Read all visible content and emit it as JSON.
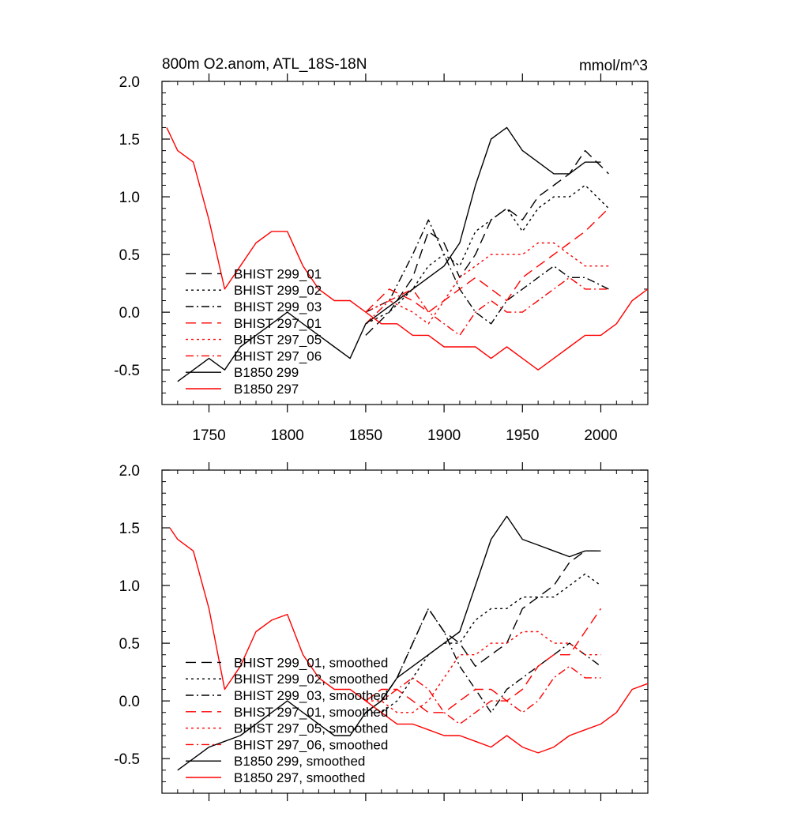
{
  "chart_data": [
    {
      "type": "line",
      "title": "800m O2.anom, ATL_18S-18N",
      "units": "mmol/m^3",
      "xlabel": "",
      "ylabel": "",
      "xlim": [
        1720,
        2030
      ],
      "ylim": [
        -0.8,
        2.0
      ],
      "x_ticks": [
        1750,
        1800,
        1850,
        1900,
        1950,
        2000
      ],
      "y_ticks": [
        -0.5,
        0.0,
        0.5,
        1.0,
        1.5,
        2.0
      ],
      "y_tick_labels": [
        "-0.5",
        "0.0",
        "0.5",
        "1.0",
        "1.5",
        "2.0"
      ],
      "legend_position": "lower-left",
      "series": [
        {
          "name": "BHIST 299_01",
          "color": "#000000",
          "dash": "long-dash",
          "x": [
            1850,
            1865,
            1880,
            1890,
            1900,
            1910,
            1920,
            1930,
            1940,
            1950,
            1960,
            1970,
            1980,
            1990,
            2005
          ],
          "y": [
            -0.2,
            0.0,
            0.3,
            0.7,
            0.6,
            0.3,
            0.5,
            0.8,
            0.9,
            0.8,
            1.0,
            1.1,
            1.2,
            1.4,
            1.2
          ]
        },
        {
          "name": "BHIST 299_02",
          "color": "#000000",
          "dash": "short-dash",
          "x": [
            1850,
            1865,
            1880,
            1890,
            1900,
            1910,
            1920,
            1930,
            1940,
            1950,
            1960,
            1970,
            1980,
            1990,
            2005
          ],
          "y": [
            -0.1,
            0.0,
            0.2,
            0.4,
            0.5,
            0.4,
            0.7,
            0.8,
            0.9,
            0.7,
            0.9,
            1.0,
            1.0,
            1.1,
            0.9
          ]
        },
        {
          "name": "BHIST 299_03",
          "color": "#000000",
          "dash": "dash-dot",
          "x": [
            1850,
            1865,
            1880,
            1890,
            1900,
            1910,
            1920,
            1930,
            1940,
            1950,
            1960,
            1970,
            1980,
            1990,
            2005
          ],
          "y": [
            0.0,
            0.1,
            0.5,
            0.8,
            0.5,
            0.2,
            0.0,
            -0.1,
            0.1,
            0.2,
            0.3,
            0.4,
            0.3,
            0.3,
            0.2
          ]
        },
        {
          "name": "BHIST 297_01",
          "color": "#ff0000",
          "dash": "long-dash",
          "x": [
            1850,
            1865,
            1880,
            1890,
            1900,
            1910,
            1920,
            1930,
            1940,
            1950,
            1960,
            1970,
            1980,
            1990,
            2005
          ],
          "y": [
            0.0,
            0.2,
            0.1,
            0.0,
            0.1,
            0.2,
            0.3,
            0.2,
            0.1,
            0.3,
            0.4,
            0.5,
            0.6,
            0.7,
            0.9
          ]
        },
        {
          "name": "BHIST 297_05",
          "color": "#ff0000",
          "dash": "short-dash",
          "x": [
            1850,
            1865,
            1880,
            1890,
            1900,
            1910,
            1920,
            1930,
            1940,
            1950,
            1960,
            1970,
            1980,
            1990,
            2005
          ],
          "y": [
            0.0,
            0.1,
            0.0,
            -0.1,
            0.1,
            0.3,
            0.4,
            0.5,
            0.5,
            0.5,
            0.6,
            0.6,
            0.5,
            0.4,
            0.4
          ]
        },
        {
          "name": "BHIST 297_06",
          "color": "#ff0000",
          "dash": "dash-dot",
          "x": [
            1850,
            1865,
            1880,
            1890,
            1900,
            1910,
            1920,
            1930,
            1940,
            1950,
            1960,
            1970,
            1980,
            1990,
            2005
          ],
          "y": [
            -0.1,
            0.1,
            0.2,
            0.0,
            -0.1,
            -0.2,
            0.0,
            0.1,
            0.0,
            0.0,
            0.1,
            0.2,
            0.3,
            0.2,
            0.2
          ]
        },
        {
          "name": "B1850 299",
          "color": "#000000",
          "dash": "solid",
          "x": [
            1730,
            1740,
            1750,
            1760,
            1770,
            1780,
            1790,
            1800,
            1810,
            1820,
            1830,
            1840,
            1850,
            1860,
            1870,
            1880,
            1890,
            1900,
            1910,
            1920,
            1930,
            1940,
            1950,
            1960,
            1970,
            1980,
            1990,
            2000
          ],
          "y": [
            -0.6,
            -0.5,
            -0.4,
            -0.5,
            -0.3,
            -0.2,
            -0.1,
            0.0,
            -0.1,
            -0.2,
            -0.3,
            -0.4,
            -0.1,
            0.0,
            0.1,
            0.2,
            0.3,
            0.4,
            0.6,
            1.1,
            1.5,
            1.6,
            1.4,
            1.3,
            1.2,
            1.2,
            1.3,
            1.3
          ]
        },
        {
          "name": "B1850 297",
          "color": "#ff0000",
          "dash": "solid",
          "x": [
            1723,
            1730,
            1740,
            1750,
            1760,
            1770,
            1780,
            1790,
            1800,
            1810,
            1820,
            1830,
            1840,
            1850,
            1860,
            1870,
            1880,
            1890,
            1900,
            1910,
            1920,
            1930,
            1940,
            1950,
            1960,
            1970,
            1980,
            1990,
            2000,
            2010,
            2020,
            2030
          ],
          "y": [
            1.6,
            1.4,
            1.3,
            0.8,
            0.2,
            0.4,
            0.6,
            0.7,
            0.7,
            0.4,
            0.2,
            0.1,
            0.1,
            0.0,
            -0.1,
            -0.1,
            -0.2,
            -0.2,
            -0.3,
            -0.3,
            -0.3,
            -0.4,
            -0.3,
            -0.4,
            -0.5,
            -0.4,
            -0.3,
            -0.2,
            -0.2,
            -0.1,
            0.1,
            0.2
          ]
        }
      ]
    },
    {
      "type": "line",
      "title": "",
      "units": "",
      "xlabel": "",
      "ylabel": "",
      "xlim": [
        1720,
        2030
      ],
      "ylim": [
        -0.8,
        2.0
      ],
      "x_ticks": [
        1750,
        1800,
        1850,
        1900,
        1950,
        2000
      ],
      "y_ticks": [
        -0.5,
        0.0,
        0.5,
        1.0,
        1.5,
        2.0
      ],
      "y_tick_labels": [
        "-0.5",
        "0.0",
        "0.5",
        "1.0",
        "1.5",
        "2.0"
      ],
      "legend_position": "lower-left",
      "series": [
        {
          "name": "BHIST 299_01, smoothed",
          "color": "#000000",
          "dash": "long-dash",
          "x": [
            1850,
            1860,
            1870,
            1880,
            1890,
            1900,
            1910,
            1920,
            1930,
            1940,
            1950,
            1960,
            1970,
            1980,
            1990,
            2000
          ],
          "y": [
            -0.1,
            0.0,
            0.2,
            0.5,
            0.8,
            0.6,
            0.5,
            0.3,
            0.4,
            0.5,
            0.8,
            0.9,
            1.0,
            1.2,
            1.3,
            1.3
          ]
        },
        {
          "name": "BHIST 299_02, smoothed",
          "color": "#000000",
          "dash": "short-dash",
          "x": [
            1850,
            1860,
            1870,
            1880,
            1890,
            1900,
            1910,
            1920,
            1930,
            1940,
            1950,
            1960,
            1970,
            1980,
            1990,
            2000
          ],
          "y": [
            -0.1,
            -0.1,
            0.0,
            0.2,
            0.4,
            0.5,
            0.5,
            0.7,
            0.8,
            0.8,
            0.9,
            0.9,
            0.9,
            1.0,
            1.1,
            1.0
          ]
        },
        {
          "name": "BHIST 299_03, smoothed",
          "color": "#000000",
          "dash": "dash-dot",
          "x": [
            1850,
            1860,
            1870,
            1880,
            1890,
            1900,
            1910,
            1920,
            1930,
            1940,
            1950,
            1960,
            1970,
            1980,
            1990,
            2000
          ],
          "y": [
            -0.1,
            0.0,
            0.2,
            0.5,
            0.8,
            0.6,
            0.3,
            0.1,
            -0.1,
            0.1,
            0.2,
            0.3,
            0.4,
            0.5,
            0.4,
            0.3
          ]
        },
        {
          "name": "BHIST 297_01, smoothed",
          "color": "#ff0000",
          "dash": "long-dash",
          "x": [
            1850,
            1860,
            1870,
            1880,
            1890,
            1900,
            1910,
            1920,
            1930,
            1940,
            1950,
            1960,
            1970,
            1980,
            1990,
            2000
          ],
          "y": [
            0.0,
            0.1,
            0.1,
            0.0,
            -0.1,
            -0.1,
            0.0,
            0.1,
            0.1,
            0.0,
            0.1,
            0.3,
            0.4,
            0.4,
            0.6,
            0.8
          ]
        },
        {
          "name": "BHIST 297_05, smoothed",
          "color": "#ff0000",
          "dash": "short-dash",
          "x": [
            1850,
            1860,
            1870,
            1880,
            1890,
            1900,
            1910,
            1920,
            1930,
            1940,
            1950,
            1960,
            1970,
            1980,
            1990,
            2000
          ],
          "y": [
            0.0,
            0.0,
            -0.1,
            -0.1,
            0.0,
            0.2,
            0.4,
            0.4,
            0.5,
            0.5,
            0.6,
            0.6,
            0.5,
            0.5,
            0.4,
            0.4
          ]
        },
        {
          "name": "BHIST 297_06, smoothed",
          "color": "#ff0000",
          "dash": "dash-dot",
          "x": [
            1850,
            1860,
            1870,
            1880,
            1890,
            1900,
            1910,
            1920,
            1930,
            1940,
            1950,
            1960,
            1970,
            1980,
            1990,
            2000
          ],
          "y": [
            -0.1,
            0.0,
            0.1,
            0.2,
            0.1,
            -0.1,
            -0.2,
            -0.1,
            0.0,
            0.0,
            -0.1,
            0.0,
            0.2,
            0.3,
            0.2,
            0.2
          ]
        },
        {
          "name": "B1850 299, smoothed",
          "color": "#000000",
          "dash": "solid",
          "x": [
            1730,
            1740,
            1750,
            1760,
            1770,
            1780,
            1790,
            1800,
            1810,
            1820,
            1830,
            1840,
            1850,
            1860,
            1870,
            1880,
            1890,
            1900,
            1910,
            1920,
            1930,
            1940,
            1950,
            1960,
            1970,
            1980,
            1990,
            2000
          ],
          "y": [
            -0.6,
            -0.5,
            -0.4,
            -0.35,
            -0.3,
            -0.2,
            -0.1,
            0.0,
            -0.1,
            -0.2,
            -0.3,
            -0.3,
            -0.1,
            0.0,
            0.2,
            0.3,
            0.4,
            0.5,
            0.6,
            1.0,
            1.4,
            1.6,
            1.4,
            1.35,
            1.3,
            1.25,
            1.3,
            1.3
          ]
        },
        {
          "name": "B1850 297, smoothed",
          "color": "#ff0000",
          "dash": "solid",
          "x": [
            1725,
            1730,
            1740,
            1750,
            1760,
            1770,
            1780,
            1790,
            1800,
            1810,
            1820,
            1830,
            1840,
            1850,
            1860,
            1870,
            1880,
            1890,
            1900,
            1910,
            1920,
            1930,
            1940,
            1950,
            1960,
            1970,
            1980,
            1990,
            2000,
            2010,
            2020,
            2030
          ],
          "y": [
            1.5,
            1.4,
            1.3,
            0.8,
            0.1,
            0.3,
            0.6,
            0.7,
            0.75,
            0.4,
            0.2,
            0.1,
            0.1,
            0.0,
            -0.1,
            -0.2,
            -0.2,
            -0.25,
            -0.3,
            -0.3,
            -0.35,
            -0.4,
            -0.3,
            -0.4,
            -0.45,
            -0.4,
            -0.3,
            -0.25,
            -0.2,
            -0.1,
            0.1,
            0.15
          ]
        }
      ]
    }
  ]
}
